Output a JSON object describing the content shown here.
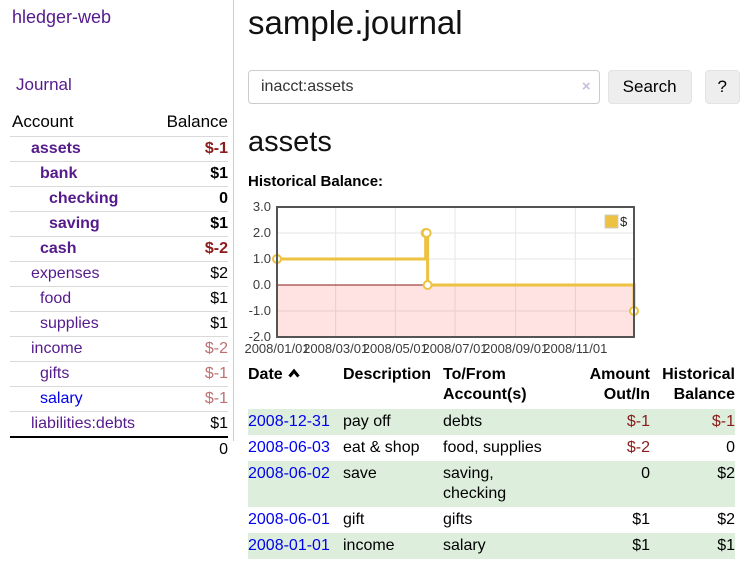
{
  "colors": {
    "link_purple": "#551a8b",
    "link_blue": "#0000ee",
    "negative_strong": "#8b1a1a",
    "negative_light": "#bc7171",
    "row_stripe_green": "#ddeedd",
    "chart_line": "#edc240",
    "chart_zero_line": "#8b1a1a",
    "chart_negative_region": "rgba(255,0,0,0.11)",
    "button_bg": "#eeeeee"
  },
  "sidebar": {
    "brand": "hledger-web",
    "nav": [
      {
        "label": "Journal"
      }
    ],
    "header": {
      "account": "Account",
      "balance": "Balance"
    },
    "accounts": [
      {
        "name": "assets",
        "balance": "$-1",
        "depth": 1,
        "emph": true
      },
      {
        "name": "bank",
        "balance": "$1",
        "depth": 2,
        "emph": true
      },
      {
        "name": "checking",
        "balance": "0",
        "depth": 3,
        "emph": true
      },
      {
        "name": "saving",
        "balance": "$1",
        "depth": 3,
        "emph": true
      },
      {
        "name": "cash",
        "balance": "$-2",
        "depth": 2,
        "emph": true
      },
      {
        "name": "expenses",
        "balance": "$2",
        "depth": 1
      },
      {
        "name": "food",
        "balance": "$1",
        "depth": 2
      },
      {
        "name": "supplies",
        "balance": "$1",
        "depth": 2
      },
      {
        "name": "income",
        "balance": "$-2",
        "depth": 1
      },
      {
        "name": "gifts",
        "balance": "$-1",
        "depth": 2
      },
      {
        "name": "salary",
        "balance": "$-1",
        "depth": 2,
        "unvisited": true
      },
      {
        "name": "liabilities:debts",
        "balance": "$1",
        "depth": 1
      }
    ],
    "total": "0"
  },
  "main": {
    "title": "sample.journal",
    "search": {
      "value": "inacct:assets",
      "clear_icon": "×",
      "search_button": "Search",
      "help_button": "?"
    },
    "account_heading": "assets",
    "section_label": "Historical Balance:"
  },
  "chart_data": {
    "type": "line",
    "step": true,
    "title": "Historical Balance:",
    "x": [
      "2008-01-01",
      "2008-06-01",
      "2008-06-02",
      "2008-06-03",
      "2008-12-31"
    ],
    "series": [
      {
        "name": "$",
        "values": [
          1,
          2,
          2,
          0,
          -1
        ]
      }
    ],
    "x_tick_labels": [
      "2008/01/01",
      "2008/03/01",
      "2008/05/01",
      "2008/07/01",
      "2008/09/01",
      "2008/11/01"
    ],
    "y_tick_labels": [
      "3.0",
      "2.0",
      "1.0",
      "0.0",
      "-1.0",
      "-2.0"
    ],
    "y_ticks": [
      3,
      2,
      1,
      0,
      -1,
      -2
    ],
    "xlim": [
      "2008-01-01",
      "2008-12-31"
    ],
    "ylim": [
      -2,
      3
    ],
    "grid": true,
    "legend_position": "top-right",
    "legend_label": "$"
  },
  "register": {
    "headers": {
      "date": "Date",
      "description": "Description",
      "tofrom": "To/From Account(s)",
      "amount": "Amount Out/In",
      "balance": "Historical Balance"
    },
    "rows": [
      {
        "date": "2008-12-31",
        "description": "pay off",
        "tofrom": "debts",
        "amount": "$-1",
        "balance": "$-1"
      },
      {
        "date": "2008-06-03",
        "description": "eat & shop",
        "tofrom": "food, supplies",
        "amount": "$-2",
        "balance": "0"
      },
      {
        "date": "2008-06-02",
        "description": "save",
        "tofrom": "saving, checking",
        "amount": "0",
        "balance": "$2"
      },
      {
        "date": "2008-06-01",
        "description": "gift",
        "tofrom": "gifts",
        "amount": "$1",
        "balance": "$2"
      },
      {
        "date": "2008-01-01",
        "description": "income",
        "tofrom": "salary",
        "amount": "$1",
        "balance": "$1"
      }
    ]
  }
}
